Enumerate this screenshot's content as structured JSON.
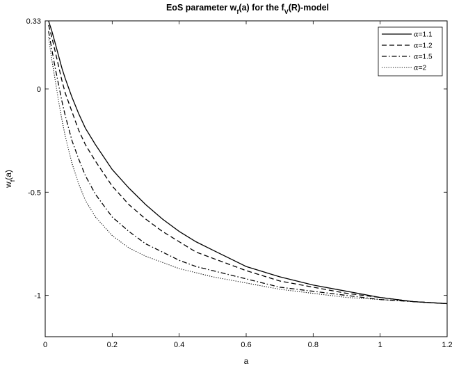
{
  "chart_data": {
    "type": "line",
    "title": {
      "text": "EoS parameter w(a) for the f(R)-model",
      "main_w": "EoS parameter w",
      "sub_f": "f",
      "mid": "(a) for the f",
      "sub_V": "V",
      "end": "(R)-model"
    },
    "xlabel": "a",
    "ylabel": {
      "main": "w",
      "sub": "f",
      "end": "(a)"
    },
    "xlim": [
      0,
      1.2
    ],
    "ylim": [
      -1.2,
      0.33
    ],
    "x_ticks": [
      0,
      0.2,
      0.4,
      0.6,
      0.8,
      1,
      1.2
    ],
    "x_tick_labels": [
      "0",
      "0.2",
      "0.4",
      "0.6",
      "0.8",
      "1",
      "1.2"
    ],
    "y_ticks": [
      0.33,
      0,
      -0.5,
      -1
    ],
    "y_tick_labels": [
      "0.33",
      "0",
      "-0.5",
      "-1"
    ],
    "grid": false,
    "legend_position": "top-right",
    "x": [
      0.01,
      0.02,
      0.03,
      0.04,
      0.05,
      0.06,
      0.08,
      0.1,
      0.12,
      0.15,
      0.2,
      0.25,
      0.3,
      0.35,
      0.4,
      0.45,
      0.5,
      0.6,
      0.7,
      0.8,
      0.9,
      1.0,
      1.1,
      1.2
    ],
    "series": [
      {
        "name": "α=1.1",
        "symbol": "α",
        "label_value": "=1.1",
        "dash": "solid",
        "values": [
          0.33,
          0.28,
          0.22,
          0.16,
          0.1,
          0.05,
          -0.04,
          -0.12,
          -0.19,
          -0.27,
          -0.39,
          -0.48,
          -0.56,
          -0.63,
          -0.69,
          -0.74,
          -0.78,
          -0.86,
          -0.91,
          -0.95,
          -0.98,
          -1.01,
          -1.03,
          -1.04
        ]
      },
      {
        "name": "α=1.2",
        "symbol": "α",
        "label_value": "=1.2",
        "dash": "dashed",
        "values": [
          0.31,
          0.25,
          0.18,
          0.11,
          0.04,
          -0.02,
          -0.11,
          -0.2,
          -0.27,
          -0.35,
          -0.47,
          -0.56,
          -0.63,
          -0.69,
          -0.74,
          -0.79,
          -0.82,
          -0.88,
          -0.93,
          -0.96,
          -0.99,
          -1.01,
          -1.03,
          -1.04
        ]
      },
      {
        "name": "α=1.5",
        "symbol": "α",
        "label_value": "=1.5",
        "dash": "dashdot",
        "values": [
          0.28,
          0.19,
          0.1,
          0.02,
          -0.06,
          -0.13,
          -0.25,
          -0.34,
          -0.42,
          -0.51,
          -0.62,
          -0.69,
          -0.75,
          -0.79,
          -0.83,
          -0.86,
          -0.88,
          -0.92,
          -0.96,
          -0.98,
          -1.0,
          -1.02,
          -1.03,
          -1.04
        ]
      },
      {
        "name": "α=2",
        "symbol": "α",
        "label_value": "=2",
        "dash": "dotted",
        "values": [
          0.25,
          0.14,
          0.04,
          -0.06,
          -0.15,
          -0.23,
          -0.36,
          -0.46,
          -0.54,
          -0.62,
          -0.71,
          -0.77,
          -0.81,
          -0.84,
          -0.87,
          -0.89,
          -0.91,
          -0.94,
          -0.97,
          -0.99,
          -1.01,
          -1.02,
          -1.03,
          -1.04
        ]
      }
    ]
  }
}
